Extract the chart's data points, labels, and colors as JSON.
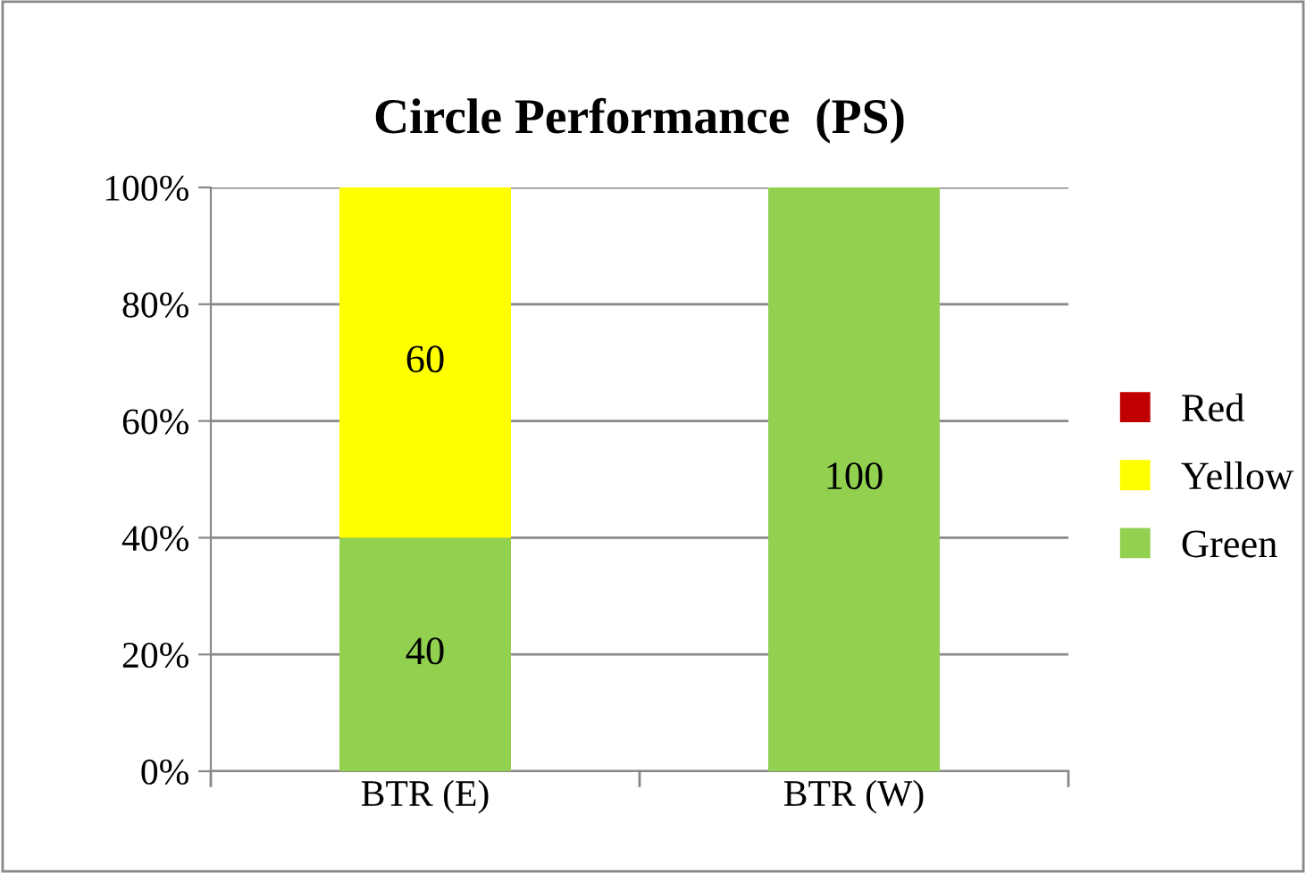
{
  "chart_data": {
    "type": "bar",
    "title": "Circle Performance  (PS)",
    "stacked": true,
    "categories": [
      "BTR (E)",
      "BTR (W)"
    ],
    "series": [
      {
        "name": "Green",
        "color": "#92d050",
        "values": [
          40,
          100
        ],
        "value_labels": [
          "40",
          "100"
        ]
      },
      {
        "name": "Yellow",
        "color": "#ffff00",
        "values": [
          60,
          0
        ],
        "value_labels": [
          "60",
          null
        ]
      },
      {
        "name": "Red",
        "color": "#c00000",
        "values": [
          0,
          0
        ],
        "value_labels": [
          null,
          null
        ]
      }
    ],
    "ylim": [
      0,
      100
    ],
    "yticks": [
      {
        "value": 0,
        "label": "0%"
      },
      {
        "value": 20,
        "label": "20%"
      },
      {
        "value": 40,
        "label": "40%"
      },
      {
        "value": 60,
        "label": "60%"
      },
      {
        "value": 80,
        "label": "80%"
      },
      {
        "value": 100,
        "label": "100%"
      }
    ],
    "grid": "y",
    "legend": "right"
  }
}
